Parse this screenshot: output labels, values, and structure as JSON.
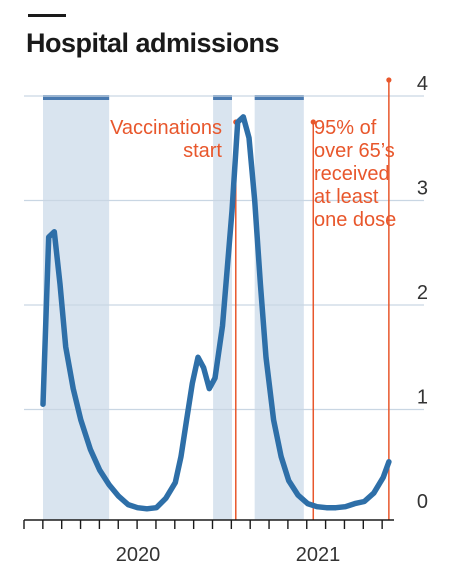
{
  "chart_data": {
    "type": "line",
    "title": "Hospital admissions",
    "xlabel": "",
    "ylabel": "",
    "ylim": [
      0,
      4
    ],
    "yticks": [
      "0",
      "1",
      "2",
      "3",
      "4"
    ],
    "xtick_labels": [
      "2020",
      "2021"
    ],
    "grid": "horizontal",
    "series": [
      {
        "values_x": [
          0.0,
          0.3,
          0.6,
          0.9,
          1.2,
          1.6,
          2.0,
          2.5,
          3.0,
          3.5,
          4.0,
          4.5,
          5.0,
          5.5,
          6.0,
          6.5,
          7.0,
          7.3,
          7.6,
          7.9,
          8.2,
          8.5,
          8.8,
          9.1,
          9.5,
          10.0,
          10.3,
          10.6,
          10.9,
          11.2,
          11.5,
          11.8,
          12.2,
          12.6,
          13.0,
          13.5,
          14.0,
          14.5,
          15.0,
          15.5,
          16.0,
          16.5,
          17.0,
          17.5,
          18.0,
          18.3
        ],
        "values_y": [
          1.05,
          2.65,
          2.7,
          2.2,
          1.6,
          1.2,
          0.9,
          0.62,
          0.42,
          0.28,
          0.17,
          0.09,
          0.06,
          0.05,
          0.06,
          0.15,
          0.3,
          0.55,
          0.9,
          1.25,
          1.5,
          1.4,
          1.2,
          1.3,
          1.8,
          2.9,
          3.75,
          3.8,
          3.6,
          3.0,
          2.2,
          1.5,
          0.9,
          0.55,
          0.32,
          0.18,
          0.1,
          0.07,
          0.06,
          0.06,
          0.07,
          0.1,
          0.12,
          0.2,
          0.35,
          0.5
        ]
      }
    ],
    "lockdown_bands_x": [
      [
        0.0,
        3.5
      ],
      [
        9.0,
        10.0
      ],
      [
        11.2,
        13.8
      ]
    ],
    "annotations": [
      {
        "x": 10.2,
        "text": "Vaccinations start",
        "lines": [
          "Vaccinations",
          "start"
        ]
      },
      {
        "x": 14.3,
        "text": "95% of over 65’s received at least one dose",
        "lines": [
          "95% of",
          "over 65’s",
          "received",
          "at least",
          "one dose"
        ]
      },
      {
        "x": 18.3,
        "text": "",
        "lines": []
      }
    ],
    "colors": {
      "line": "#2e6fa8",
      "band": "#d9e4ef",
      "band_top": "#4a7ab0",
      "annotation": "#e8572c",
      "grid": "#c9d6e3",
      "axis": "#1a1a1a"
    }
  }
}
